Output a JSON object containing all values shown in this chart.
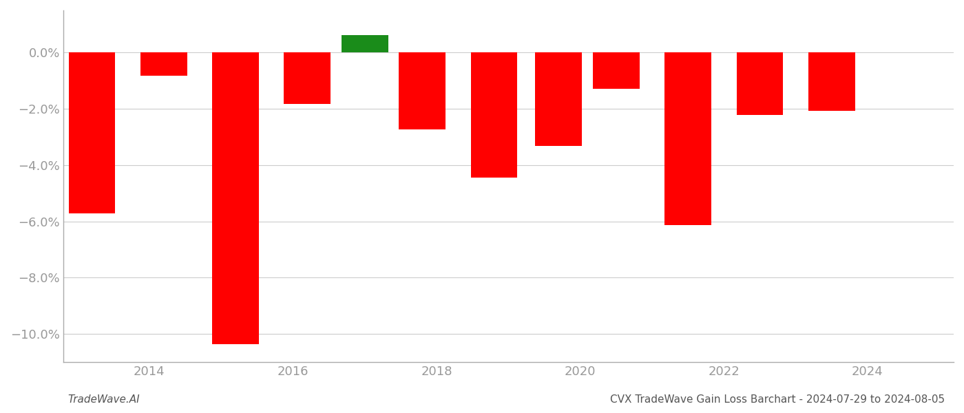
{
  "values": [
    -5.72,
    -0.82,
    -10.35,
    -1.82,
    0.62,
    -2.72,
    -4.45,
    -3.32,
    -1.28,
    -6.12,
    -2.22,
    -2.08
  ],
  "bar_colors": [
    "#ff0000",
    "#ff0000",
    "#ff0000",
    "#ff0000",
    "#1a8c1a",
    "#ff0000",
    "#ff0000",
    "#ff0000",
    "#ff0000",
    "#ff0000",
    "#ff0000",
    "#ff0000"
  ],
  "ylim": [
    -11.0,
    1.5
  ],
  "yticks": [
    0.0,
    -2.0,
    -4.0,
    -6.0,
    -8.0,
    -10.0
  ],
  "xticks": [
    2014,
    2016,
    2018,
    2020,
    2022,
    2024
  ],
  "xlim": [
    2012.8,
    2025.2
  ],
  "grid_color": "#cccccc",
  "bar_width": 0.65,
  "background_color": "#ffffff",
  "axis_color": "#aaaaaa",
  "tick_label_color": "#999999",
  "footer_left": "TradeWave.AI",
  "footer_right": "CVX TradeWave Gain Loss Barchart - 2024-07-29 to 2024-08-05",
  "footer_fontsize": 11,
  "tick_fontsize": 13
}
